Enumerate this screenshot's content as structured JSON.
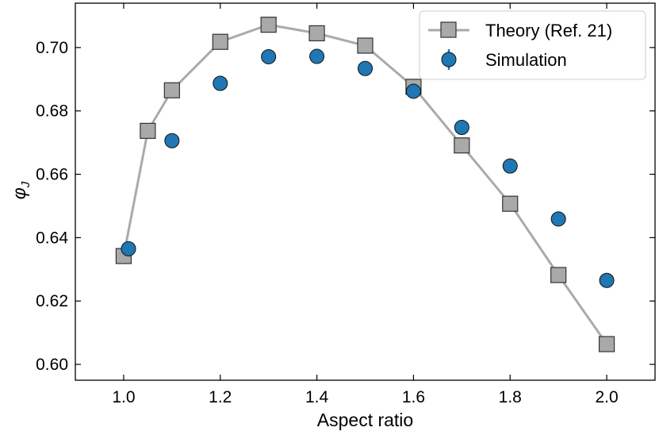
{
  "chart_data": {
    "type": "scatter",
    "title": "",
    "xlabel": "Aspect ratio",
    "ylabel": "φJ",
    "ylabel_main": "φ",
    "ylabel_sub": "J",
    "xlim": [
      0.9,
      2.1
    ],
    "ylim": [
      0.595,
      0.714
    ],
    "xticks": [
      1.0,
      1.2,
      1.4,
      1.6,
      1.8,
      2.0
    ],
    "xtick_labels": [
      "1.0",
      "1.2",
      "1.4",
      "1.6",
      "1.8",
      "2.0"
    ],
    "yticks": [
      0.6,
      0.62,
      0.64,
      0.66,
      0.68,
      0.7
    ],
    "ytick_labels": [
      "0.60",
      "0.62",
      "0.64",
      "0.66",
      "0.68",
      "0.70"
    ],
    "grid": false,
    "legend_position": "top-right",
    "series": [
      {
        "name": "Theory (Ref. 21)",
        "marker": "square",
        "line": true,
        "color": "#a9a9a9",
        "line_color": "#aaaaaa",
        "x": [
          1.0,
          1.05,
          1.1,
          1.2,
          1.3,
          1.4,
          1.5,
          1.6,
          1.7,
          1.8,
          1.9,
          2.0
        ],
        "y": [
          0.6342,
          0.6737,
          0.6865,
          0.7018,
          0.7072,
          0.7045,
          0.7006,
          0.6876,
          0.6691,
          0.6507,
          0.6282,
          0.6064
        ]
      },
      {
        "name": "Simulation",
        "marker": "circle",
        "line": false,
        "color": "#1f77b4",
        "x": [
          1.01,
          1.1,
          1.2,
          1.3,
          1.4,
          1.5,
          1.6,
          1.7,
          1.8,
          1.9,
          2.0
        ],
        "y": [
          0.6365,
          0.6706,
          0.6887,
          0.6971,
          0.6972,
          0.6934,
          0.6862,
          0.6748,
          0.6626,
          0.6459,
          0.6265
        ],
        "yerr": [
          0.002,
          0.0005,
          0.0005,
          0.0005,
          0.0005,
          0.0005,
          0.0005,
          0.0005,
          0.0005,
          0.0005,
          0.0005
        ]
      }
    ]
  }
}
